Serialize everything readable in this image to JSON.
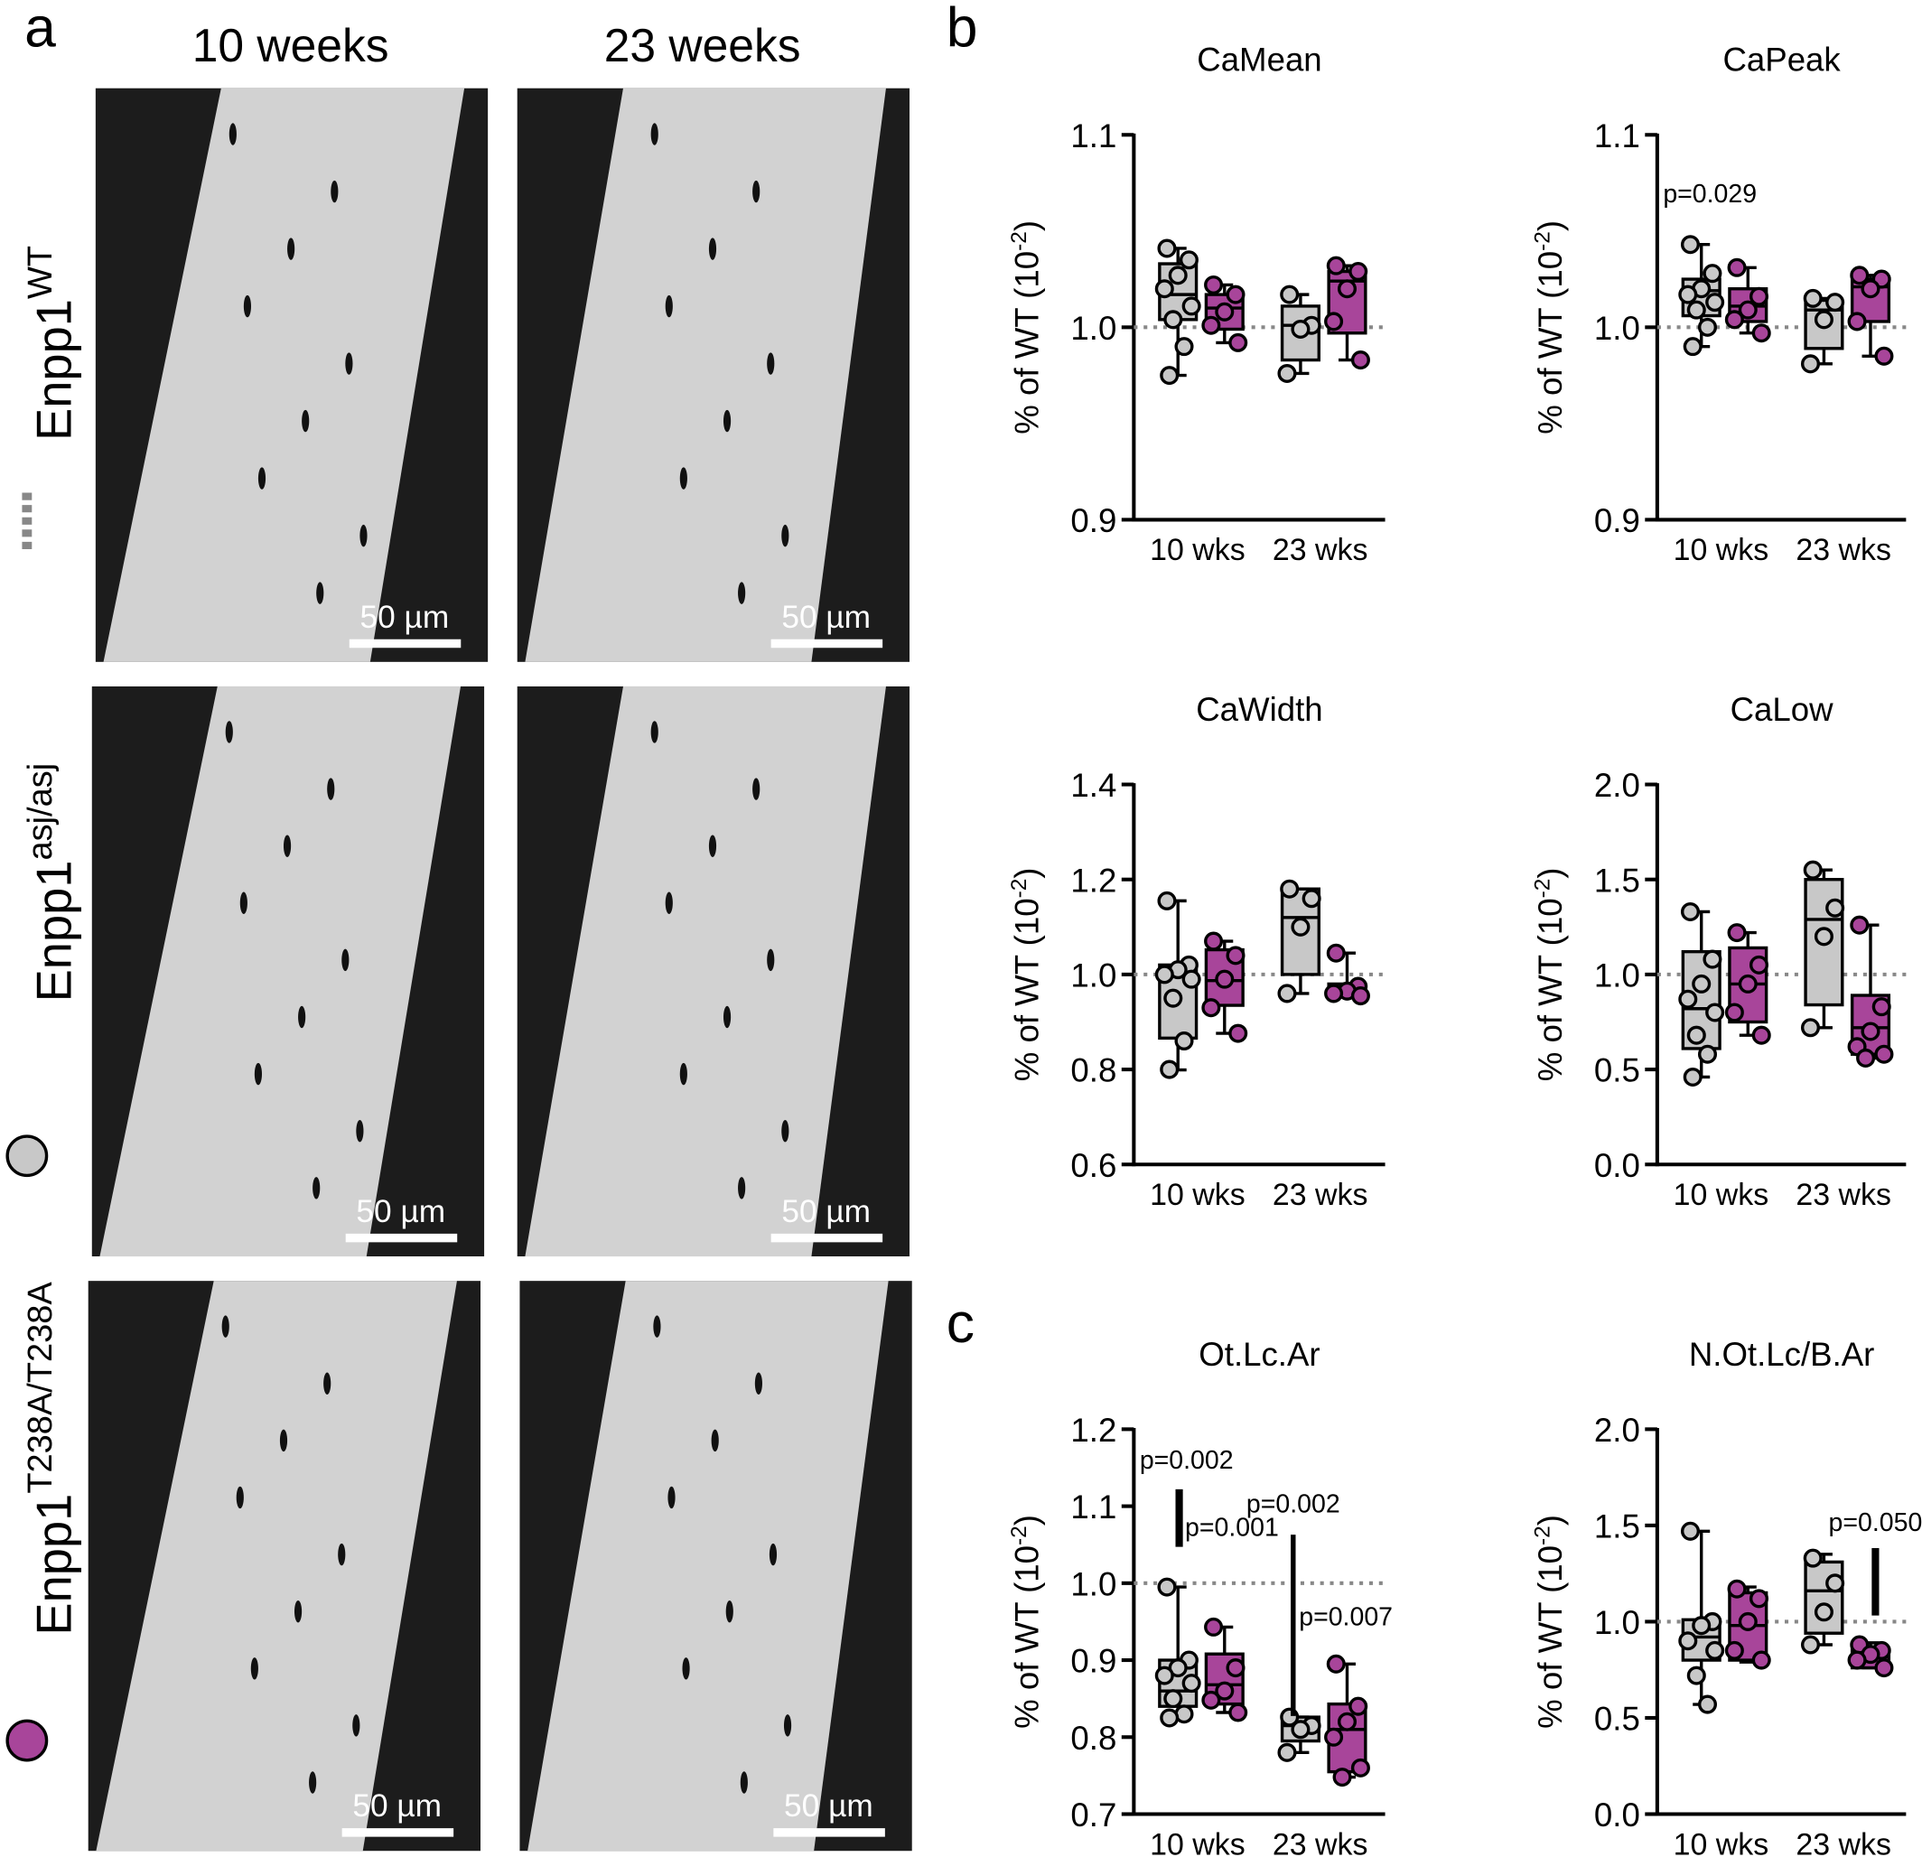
{
  "panel_letters": [
    "a",
    "b",
    "c"
  ],
  "panel_a": {
    "columns": [
      "10 weeks",
      "23 weeks"
    ],
    "rows": [
      {
        "gene": "Enpp1",
        "allele": "WT"
      },
      {
        "gene": "Enpp1",
        "allele": "asj/asj"
      },
      {
        "gene": "Enpp1",
        "allele": "T238A/T238A"
      }
    ],
    "scale_bar": "50 µm"
  },
  "chart_data": [
    {
      "type": "box",
      "title": "CaMean",
      "y_label": [
        "% of WT (10",
        "-2",
        ")"
      ],
      "categories": [
        "10 wks",
        "23 wks"
      ],
      "ylim": [
        0.9,
        1.1
      ],
      "yticks": [
        0.9,
        {
          "value": 1,
          "label": "1.0"
        },
        1.1
      ],
      "refline": 1,
      "series": [
        {
          "color": "#c8c8c8",
          "boxes": [
            {
              "min": 0.975,
              "q1": 1.004,
              "median": 1.017,
              "q3": 1.033,
              "max": 1.041,
              "points": [
                1.041,
                1.035,
                1.027,
                1.02,
                1.011,
                1.004,
                0.99,
                0.975
              ]
            },
            {
              "min": 0.976,
              "q1": 0.983,
              "median": 1.001,
              "q3": 1.011,
              "max": 1.017,
              "points": [
                1.017,
                1.001,
                0.999,
                0.976
              ]
            }
          ]
        },
        {
          "color": "#a8459a",
          "boxes": [
            {
              "min": 0.992,
              "q1": 0.999,
              "median": 1.01,
              "q3": 1.017,
              "max": 1.022,
              "points": [
                1.022,
                1.017,
                1.008,
                1.001,
                0.992
              ]
            },
            {
              "min": 0.983,
              "q1": 0.997,
              "median": 1.024,
              "q3": 1.029,
              "max": 1.032,
              "points": [
                1.032,
                1.029,
                1.02,
                1.003,
                0.983
              ]
            }
          ]
        }
      ]
    },
    {
      "type": "box",
      "title": "CaPeak",
      "y_label": [
        "% of WT (10",
        "-2",
        ")"
      ],
      "categories": [
        "10 wks",
        "23 wks"
      ],
      "ylim": [
        0.9,
        1.1
      ],
      "yticks": [
        0.9,
        {
          "value": 1,
          "label": "1.0"
        },
        1.1
      ],
      "refline": 1,
      "annotations": [
        "p=0.029"
      ],
      "series": [
        {
          "color": "#c8c8c8",
          "boxes": [
            {
              "min": 0.99,
              "q1": 1.006,
              "median": 1.019,
              "q3": 1.025,
              "max": 1.043,
              "points": [
                1.043,
                1.028,
                1.02,
                1.017,
                1.013,
                1.009,
                1.0,
                0.99
              ]
            },
            {
              "min": 0.981,
              "q1": 0.989,
              "median": 1.009,
              "q3": 1.014,
              "max": 1.015,
              "points": [
                1.015,
                1.013,
                1.004,
                0.981
              ]
            }
          ]
        },
        {
          "color": "#a8459a",
          "boxes": [
            {
              "min": 0.997,
              "q1": 1.003,
              "median": 1.011,
              "q3": 1.02,
              "max": 1.031,
              "points": [
                1.031,
                1.016,
                1.009,
                1.004,
                0.997
              ]
            },
            {
              "min": 0.985,
              "q1": 1.003,
              "median": 1.021,
              "q3": 1.025,
              "max": 1.027,
              "points": [
                1.027,
                1.025,
                1.02,
                1.003,
                0.985
              ]
            }
          ]
        }
      ]
    },
    {
      "type": "box",
      "title": "CaWidth",
      "y_label": [
        "% of WT (10",
        "-2",
        ")"
      ],
      "categories": [
        "10 wks",
        "23 wks"
      ],
      "ylim": [
        0.6,
        1.4
      ],
      "yticks": [
        0.6,
        0.8,
        {
          "value": 1,
          "label": "1.0"
        },
        1.2,
        1.4
      ],
      "refline": 1,
      "series": [
        {
          "color": "#c8c8c8",
          "boxes": [
            {
              "min": 0.799,
              "q1": 0.866,
              "median": 1.0,
              "q3": 1.02,
              "max": 1.155,
              "points": [
                1.155,
                1.02,
                1.01,
                1.0,
                0.99,
                0.95,
                0.86,
                0.8
              ]
            },
            {
              "min": 0.96,
              "q1": 1.0,
              "median": 1.12,
              "q3": 1.18,
              "max": 1.18,
              "points": [
                1.18,
                1.16,
                1.1,
                0.96
              ]
            }
          ]
        },
        {
          "color": "#a8459a",
          "boxes": [
            {
              "min": 0.876,
              "q1": 0.935,
              "median": 0.987,
              "q3": 1.052,
              "max": 1.07,
              "points": [
                1.07,
                1.04,
                0.99,
                0.93,
                0.876
              ]
            },
            {
              "min": 0.955,
              "q1": 0.96,
              "median": 0.97,
              "q3": 0.98,
              "max": 1.045,
              "points": [
                1.045,
                0.975,
                0.965,
                0.96,
                0.955
              ]
            }
          ]
        }
      ]
    },
    {
      "type": "box",
      "title": "CaLow",
      "y_label": [
        "% of WT (10",
        "-2",
        ")"
      ],
      "categories": [
        "10 wks",
        "23 wks"
      ],
      "ylim": [
        0,
        2
      ],
      "yticks": [
        {
          "value": 0,
          "label": "0.0"
        },
        0.5,
        {
          "value": 1,
          "label": "1.0"
        },
        1.5,
        {
          "value": 2,
          "label": "2.0"
        }
      ],
      "refline": 1,
      "series": [
        {
          "color": "#c8c8c8",
          "boxes": [
            {
              "min": 0.46,
              "q1": 0.61,
              "median": 0.82,
              "q3": 1.12,
              "max": 1.33,
              "points": [
                1.33,
                1.08,
                0.95,
                0.87,
                0.8,
                0.68,
                0.58,
                0.46
              ]
            },
            {
              "min": 0.72,
              "q1": 0.84,
              "median": 1.29,
              "q3": 1.5,
              "max": 1.55,
              "points": [
                1.55,
                1.35,
                1.2,
                0.72
              ]
            }
          ]
        },
        {
          "color": "#a8459a",
          "boxes": [
            {
              "min": 0.68,
              "q1": 0.75,
              "median": 0.95,
              "q3": 1.14,
              "max": 1.22,
              "points": [
                1.22,
                1.05,
                0.95,
                0.8,
                0.68
              ]
            },
            {
              "min": 0.56,
              "q1": 0.58,
              "median": 0.72,
              "q3": 0.89,
              "max": 1.26,
              "points": [
                1.26,
                0.83,
                0.7,
                0.62,
                0.58,
                0.56
              ]
            }
          ]
        }
      ]
    },
    {
      "type": "box",
      "title": "Ot.Lc.Ar",
      "y_label": [
        "% of WT (10",
        "-2",
        ")"
      ],
      "categories": [
        "10 wks",
        "23 wks"
      ],
      "ylim": [
        0.7,
        1.2
      ],
      "yticks": [
        0.7,
        0.8,
        0.9,
        {
          "value": 1,
          "label": "1.0"
        },
        1.1,
        1.2
      ],
      "refline": 1,
      "annotations": [
        "p=0.002",
        "p=0.001",
        "p=0.002",
        "p=0.007"
      ],
      "series": [
        {
          "color": "#c8c8c8",
          "boxes": [
            {
              "min": 0.825,
              "q1": 0.84,
              "median": 0.86,
              "q3": 0.9,
              "max": 0.995,
              "points": [
                0.995,
                0.9,
                0.89,
                0.88,
                0.87,
                0.85,
                0.83,
                0.825
              ]
            },
            {
              "min": 0.78,
              "q1": 0.795,
              "median": 0.815,
              "q3": 0.826,
              "max": 0.826,
              "points": [
                0.826,
                0.815,
                0.81,
                0.78
              ]
            }
          ]
        },
        {
          "color": "#a8459a",
          "boxes": [
            {
              "min": 0.832,
              "q1": 0.843,
              "median": 0.868,
              "q3": 0.908,
              "max": 0.943,
              "points": [
                0.943,
                0.89,
                0.86,
                0.848,
                0.832
              ]
            },
            {
              "min": 0.748,
              "q1": 0.755,
              "median": 0.81,
              "q3": 0.843,
              "max": 0.895,
              "points": [
                0.895,
                0.84,
                0.82,
                0.8,
                0.76,
                0.748
              ]
            }
          ]
        }
      ]
    },
    {
      "type": "box",
      "title": "N.Ot.Lc/B.Ar",
      "y_label": [
        "% of WT (10",
        "-2",
        ")"
      ],
      "categories": [
        "10 wks",
        "23 wks"
      ],
      "ylim": [
        0,
        2
      ],
      "yticks": [
        {
          "value": 0,
          "label": "0.0"
        },
        0.5,
        {
          "value": 1,
          "label": "1.0"
        },
        1.5,
        {
          "value": 2,
          "label": "2.0"
        }
      ],
      "refline": 1,
      "annotations": [
        "p=0.050"
      ],
      "series": [
        {
          "color": "#c8c8c8",
          "boxes": [
            {
              "min": 0.57,
              "q1": 0.8,
              "median": 0.92,
              "q3": 1.01,
              "max": 1.47,
              "points": [
                1.47,
                1.0,
                0.98,
                0.9,
                0.85,
                0.72,
                0.57
              ]
            },
            {
              "min": 0.88,
              "q1": 0.94,
              "median": 1.16,
              "q3": 1.31,
              "max": 1.35,
              "points": [
                1.33,
                1.2,
                1.05,
                0.88
              ]
            }
          ]
        },
        {
          "color": "#a8459a",
          "boxes": [
            {
              "min": 0.79,
              "q1": 0.8,
              "median": 0.98,
              "q3": 1.15,
              "max": 1.18,
              "points": [
                1.17,
                1.12,
                1.0,
                0.85,
                0.8
              ]
            },
            {
              "min": 0.76,
              "q1": 0.76,
              "median": 0.83,
              "q3": 0.86,
              "max": 0.89,
              "points": [
                0.88,
                0.85,
                0.83,
                0.8,
                0.76
              ]
            }
          ]
        }
      ]
    }
  ]
}
